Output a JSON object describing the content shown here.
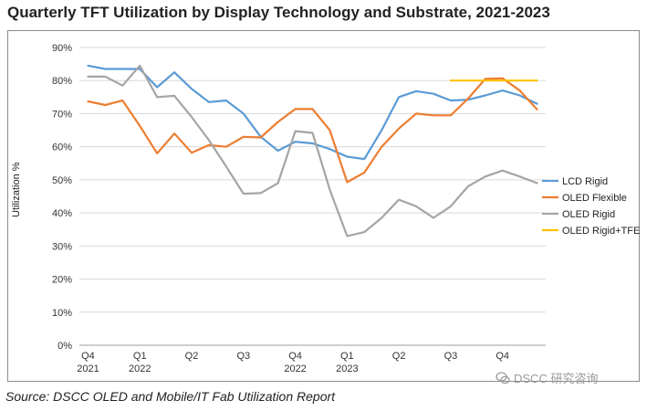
{
  "chart_data": {
    "type": "line",
    "title": "Quarterly TFT Utilization by Display Technology and Substrate, 2021-2023",
    "ylabel": "Utilization %",
    "xlabel": "",
    "ylim": [
      0,
      90
    ],
    "yticks": [
      "0%",
      "10%",
      "20%",
      "30%",
      "40%",
      "50%",
      "60%",
      "70%",
      "80%",
      "90%"
    ],
    "xgroups": [
      {
        "label": "Q4",
        "sublabel": "2021"
      },
      {
        "label": "Q1",
        "sublabel": "2022"
      },
      {
        "label": "Q2",
        "sublabel": ""
      },
      {
        "label": "Q3",
        "sublabel": ""
      },
      {
        "label": "Q4",
        "sublabel": "2022"
      },
      {
        "label": "Q1",
        "sublabel": "2023"
      },
      {
        "label": "Q2",
        "sublabel": ""
      },
      {
        "label": "Q3",
        "sublabel": ""
      },
      {
        "label": "Q4",
        "sublabel": ""
      }
    ],
    "points_per_quarter": 3,
    "grid": true,
    "legend_position": "right",
    "series": [
      {
        "name": "LCD Rigid",
        "color": "#5B9BD5",
        "values": [
          84.5,
          83.5,
          83.5,
          83.5,
          78,
          82.5,
          77.5,
          73.5,
          74,
          70,
          63,
          58.8,
          61.5,
          61,
          59.3,
          57,
          56.3,
          65,
          75,
          76.8,
          76,
          74,
          74.2,
          75.5,
          77,
          75.5,
          73
        ]
      },
      {
        "name": "OLED Flexible",
        "color": "#ED7D31",
        "values": [
          73.7,
          72.6,
          74,
          66.3,
          58,
          64,
          58.2,
          60.5,
          60,
          63,
          62.8,
          67.5,
          71.4,
          71.4,
          65,
          49.3,
          52.2,
          60,
          65.5,
          70,
          69.5,
          69.5,
          74.5,
          80.5,
          80.7,
          77,
          71.3
        ]
      },
      {
        "name": "OLED Rigid",
        "color": "#A5A5A5",
        "values": [
          81.2,
          81.2,
          78.5,
          84.5,
          75,
          75.4,
          69,
          62,
          54,
          45.8,
          46,
          49,
          64.7,
          64.2,
          47,
          33,
          34.2,
          38.5,
          44,
          42,
          38.5,
          42,
          48,
          51,
          52.8,
          51,
          49
        ]
      },
      {
        "name": "OLED Rigid+TFE",
        "color": "#FFC000",
        "start_index": 21,
        "values": [
          80,
          80,
          80,
          80,
          80,
          80
        ]
      }
    ]
  },
  "source_text": "Source: DSCC OLED and Mobile/IT Fab Utilization Report",
  "watermark": {
    "text": "DSCC 研究咨询",
    "icon": "wechat-logo-icon"
  }
}
